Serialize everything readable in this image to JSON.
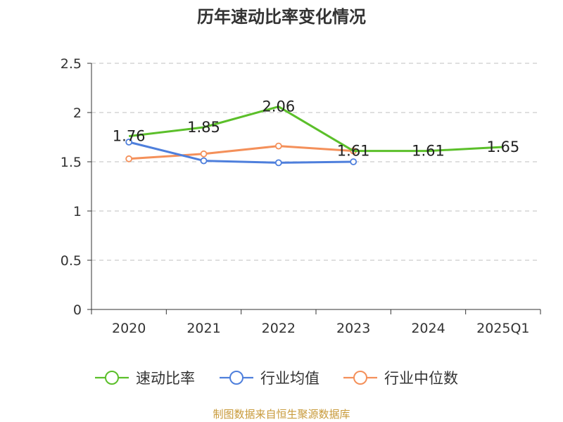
{
  "chart_data": {
    "type": "line",
    "title": "历年速动比率变化情况",
    "categories": [
      "2020",
      "2021",
      "2022",
      "2023",
      "2024",
      "2025Q1"
    ],
    "ylim": [
      0,
      2.5
    ],
    "yticks": [
      "0",
      "0.5",
      "1",
      "1.5",
      "2",
      "2.5"
    ],
    "grid": true,
    "legend_position": "bottom",
    "series": [
      {
        "name": "速动比率",
        "color": "#5bbf2a",
        "values": [
          1.76,
          1.85,
          2.06,
          1.61,
          1.61,
          1.65
        ],
        "labels": [
          "1.76",
          "1.85",
          "2.06",
          "1.61",
          "1.61",
          "1.65"
        ]
      },
      {
        "name": "行业均值",
        "color": "#4e7fdc",
        "values": [
          1.7,
          1.51,
          1.49,
          1.5,
          null,
          null
        ]
      },
      {
        "name": "行业中位数",
        "color": "#f4905a",
        "values": [
          1.53,
          1.58,
          1.66,
          1.61,
          null,
          null
        ]
      }
    ]
  },
  "footer": {
    "source": "制图数据来自恒生聚源数据库"
  }
}
